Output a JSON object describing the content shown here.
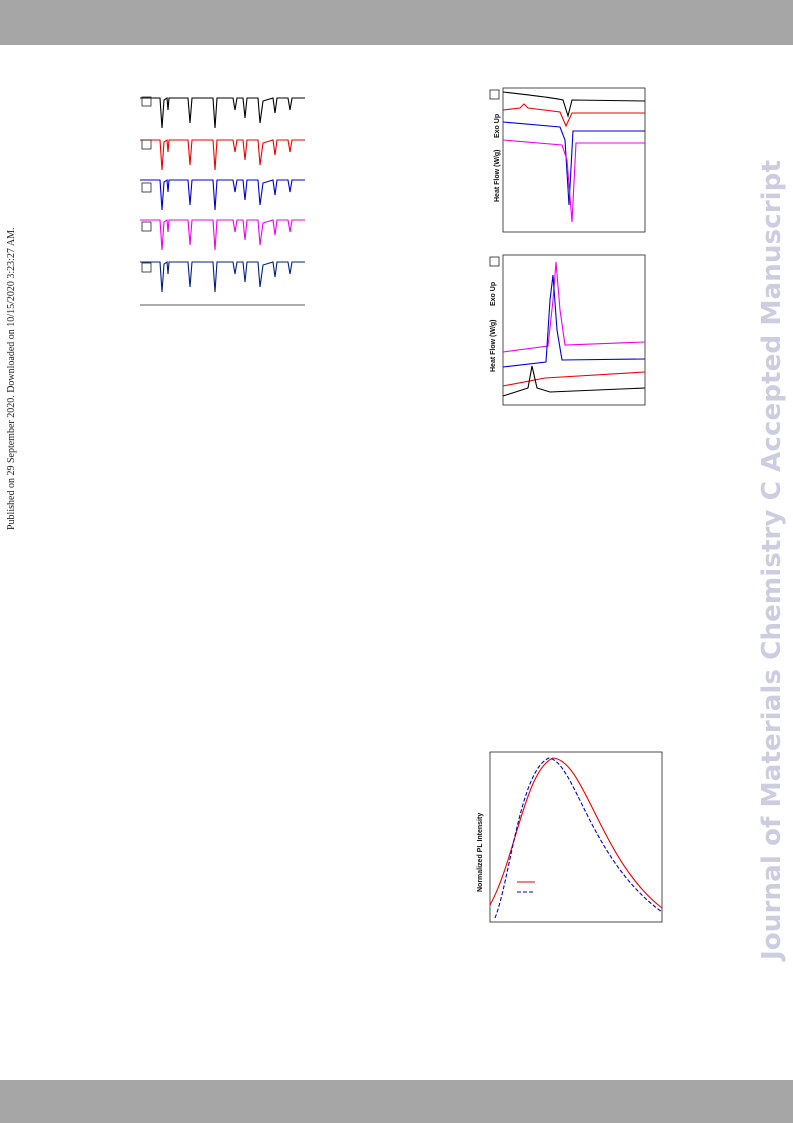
{
  "published_note": "Published on 29 September 2020. Downloaded on 10/15/2020 3:23:27 AM.",
  "watermark": "Journal of Materials Chemistry C Accepted Manuscript",
  "dsc_heating": {
    "y_label": "Heat Flow (W/g)",
    "exo_label": "Exo Up"
  },
  "dsc_cooling": {
    "y_label": "Heat Flow (W/g)",
    "exo_label": "Exo Up"
  },
  "pl_figure": {
    "y_label": "Normalized PL Intensity"
  }
}
